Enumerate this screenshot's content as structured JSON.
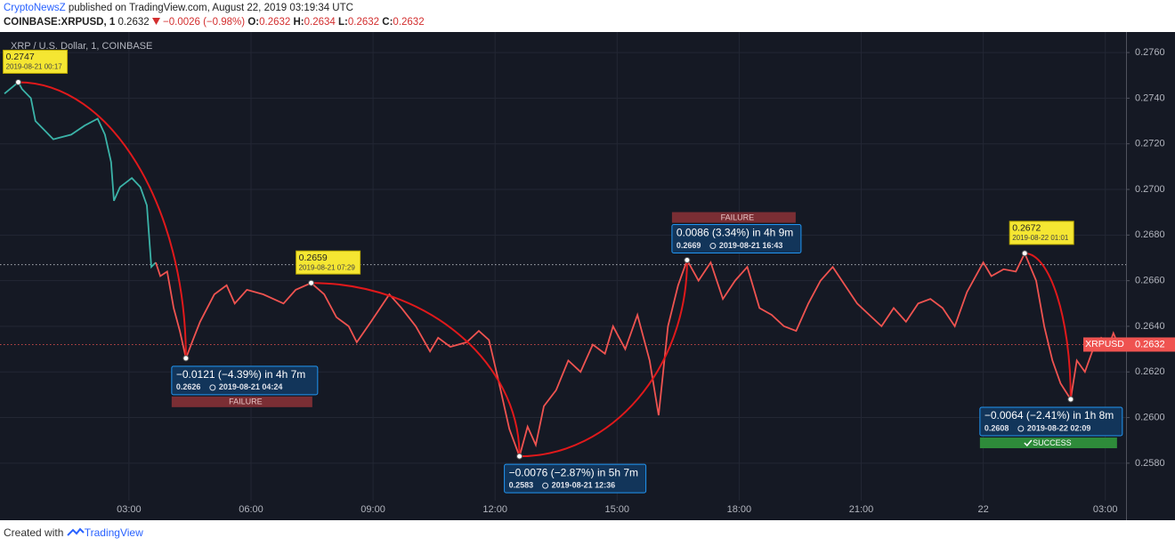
{
  "header": {
    "publisher": "CryptoNewsZ",
    "published": "published on TradingView.com, August 22, 2019 03:19:34 UTC",
    "symbol": "COINBASE:XRPUSD, 1",
    "last": 0.2632,
    "change": "−0.0026 (−0.98%)",
    "ohlc": [
      {
        "label": "O:",
        "value": 0.2632
      },
      {
        "label": "H:",
        "value": 0.2634
      },
      {
        "label": "L:",
        "value": 0.2632
      },
      {
        "label": "C:",
        "value": 0.2632
      }
    ]
  },
  "footer": {
    "text": "Created with",
    "brand": "TradingView"
  },
  "chart_data": {
    "type": "line",
    "legend": "XRP / U.S. Dollar, 1, COINBASE",
    "xlim": [
      -0.17,
      27.51
    ],
    "ylim": [
      0.2555,
      0.2769
    ],
    "xticks": [
      {
        "value": 3,
        "label": "03:00"
      },
      {
        "value": 6,
        "label": "06:00"
      },
      {
        "value": 9,
        "label": "09:00"
      },
      {
        "value": 12,
        "label": "12:00"
      },
      {
        "value": 15,
        "label": "15:00"
      },
      {
        "value": 18,
        "label": "18:00"
      },
      {
        "value": 21,
        "label": "21:00"
      },
      {
        "value": 24,
        "label": "22"
      },
      {
        "value": 27,
        "label": "03:00"
      }
    ],
    "yticks": [
      {
        "value": 0.258,
        "label": "0.2580"
      },
      {
        "value": 0.26,
        "label": "0.2600"
      },
      {
        "value": 0.262,
        "label": "0.2620"
      },
      {
        "value": 0.264,
        "label": "0.2640"
      },
      {
        "value": 0.266,
        "label": "0.2660"
      },
      {
        "value": 0.268,
        "label": "0.2680"
      },
      {
        "value": 0.27,
        "label": "0.2700"
      },
      {
        "value": 0.272,
        "label": "0.2720"
      },
      {
        "value": 0.274,
        "label": "0.2740"
      },
      {
        "value": 0.276,
        "label": "0.2760"
      }
    ],
    "grid": true,
    "series": [
      {
        "color": "#3bb3a8",
        "x": [
          -0.06,
          0.28,
          0.37,
          0.59,
          0.7,
          0.92,
          1.14,
          1.58,
          1.91,
          2.23,
          2.41,
          2.56,
          2.63,
          2.78,
          3.07,
          3.28,
          3.44,
          3.55,
          3.66
        ],
        "values": [
          0.2742,
          0.2747,
          0.2744,
          0.274,
          0.273,
          0.2726,
          0.2722,
          0.2724,
          0.2728,
          0.2731,
          0.2724,
          0.2712,
          0.2695,
          0.2701,
          0.2705,
          0.2701,
          0.2693,
          0.2666,
          0.2668
        ]
      },
      {
        "color": "#ef5350",
        "x": [
          3.66,
          3.77,
          3.94,
          4.1,
          4.25,
          4.4,
          4.55,
          4.75,
          5.1,
          5.4,
          5.6,
          5.9,
          6.3,
          6.8,
          7.1,
          7.48,
          7.8,
          8.1,
          8.4,
          8.6,
          8.95,
          9.4,
          9.7,
          10.05,
          10.4,
          10.6,
          10.9,
          11.3,
          11.6,
          11.85,
          12.1,
          12.35,
          12.6,
          12.8,
          13.0,
          13.2,
          13.5,
          13.8,
          14.1,
          14.4,
          14.7,
          14.9,
          15.2,
          15.5,
          15.8,
          16.02,
          16.25,
          16.5,
          16.72,
          17.0,
          17.3,
          17.6,
          17.9,
          18.2,
          18.5,
          18.8,
          19.1,
          19.4,
          19.7,
          20.0,
          20.3,
          20.6,
          20.9,
          21.2,
          21.5,
          21.8,
          22.1,
          22.4,
          22.7,
          23.0,
          23.3,
          23.6,
          24.0,
          24.2,
          24.5,
          24.8,
          25.02,
          25.3,
          25.5,
          25.7,
          25.9,
          26.15,
          26.3,
          26.5,
          26.7,
          26.9,
          27.1,
          27.2,
          27.32
        ],
        "values": [
          0.2668,
          0.2662,
          0.2664,
          0.2648,
          0.2638,
          0.2626,
          0.2633,
          0.2642,
          0.2654,
          0.2658,
          0.265,
          0.2656,
          0.2654,
          0.265,
          0.2656,
          0.2659,
          0.2654,
          0.2644,
          0.264,
          0.2633,
          0.2642,
          0.2654,
          0.2648,
          0.264,
          0.2629,
          0.2635,
          0.2631,
          0.2633,
          0.2638,
          0.2634,
          0.2615,
          0.2595,
          0.2583,
          0.2596,
          0.2588,
          0.2605,
          0.2612,
          0.2625,
          0.262,
          0.2632,
          0.2628,
          0.264,
          0.263,
          0.2645,
          0.2625,
          0.2601,
          0.264,
          0.2658,
          0.2669,
          0.266,
          0.2668,
          0.2652,
          0.266,
          0.2666,
          0.2648,
          0.2645,
          0.264,
          0.2638,
          0.265,
          0.266,
          0.2666,
          0.2658,
          0.265,
          0.2645,
          0.264,
          0.2648,
          0.2642,
          0.265,
          0.2652,
          0.2648,
          0.264,
          0.2655,
          0.2668,
          0.2662,
          0.2665,
          0.2664,
          0.2672,
          0.266,
          0.264,
          0.2625,
          0.2615,
          0.2608,
          0.2625,
          0.262,
          0.263,
          0.2635,
          0.2632,
          0.2637,
          0.2632
        ]
      }
    ],
    "hlines": [
      {
        "value": 0.2667,
        "color": "#d1d4dc"
      },
      {
        "value": 0.2632,
        "color": "#ef5350"
      }
    ],
    "last": {
      "symbol": "XRPUSD",
      "value": 0.2632,
      "color": "#ef5350"
    },
    "markers": [
      {
        "x": 0.28,
        "value": 0.2747,
        "time": "2019-08-21 00:17"
      },
      {
        "x": 7.48,
        "value": 0.2659,
        "time": "2019-08-21 07:29"
      },
      {
        "x": 25.02,
        "value": 0.2672,
        "time": "2019-08-22 01:01"
      }
    ],
    "measures": [
      {
        "x": 4.4,
        "value": 0.2626,
        "change": "−0.0121 (−4.39%) in 4h 7m",
        "time": "2019-08-21 04:24",
        "status": "FAILURE"
      },
      {
        "x": 12.6,
        "value": 0.2583,
        "change": "−0.0076 (−2.87%) in 5h 7m",
        "time": "2019-08-21 12:36"
      },
      {
        "x": 16.72,
        "value": 0.2669,
        "change": "0.0086 (3.34%) in 4h 9m",
        "time": "2019-08-21 16:43",
        "status": "FAILURE"
      },
      {
        "x": 26.15,
        "value": 0.2608,
        "change": "−0.0064 (−2.41%) in 1h 8m",
        "time": "2019-08-22 02:09",
        "status": "SUCCESS"
      }
    ]
  }
}
